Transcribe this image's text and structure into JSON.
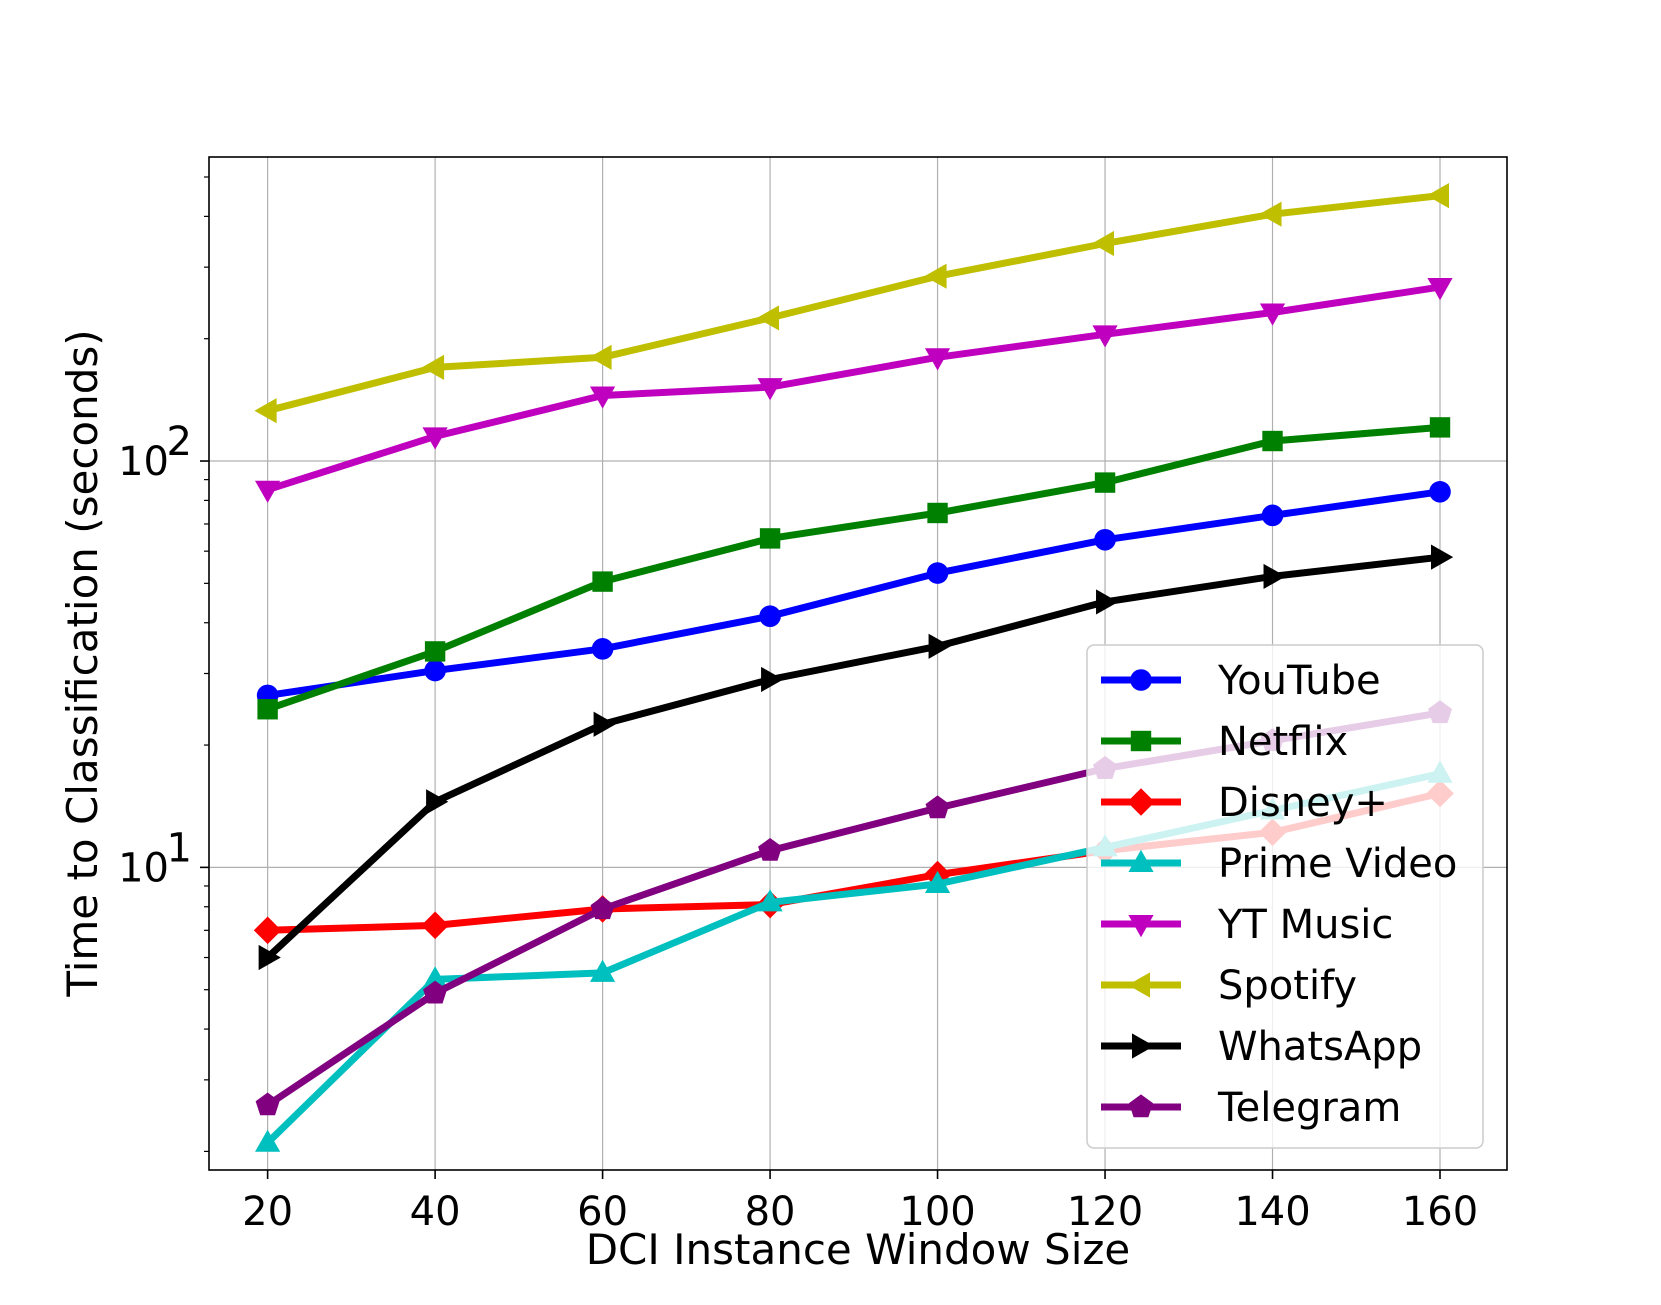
{
  "chart_data": {
    "type": "line",
    "title": "",
    "xlabel": "DCI Instance Window Size",
    "ylabel": "Time to Classification (seconds)",
    "yscale": "log",
    "x": [
      20,
      40,
      60,
      80,
      100,
      120,
      140,
      160
    ],
    "xticks": [
      20,
      40,
      60,
      80,
      100,
      120,
      140,
      160
    ],
    "xlim": [
      13,
      168
    ],
    "ylim": [
      1.8,
      560
    ],
    "yticks": [
      {
        "value": 10,
        "base": "10",
        "exp": "1"
      },
      {
        "value": 100,
        "base": "10",
        "exp": "2"
      }
    ],
    "grid": true,
    "legend_position": "lower-right",
    "series": [
      {
        "name": "YouTube",
        "color": "#0000ff",
        "marker": "circle",
        "values": [
          26.5,
          30.5,
          34.5,
          41.5,
          53,
          64,
          73.5,
          84
        ]
      },
      {
        "name": "Netflix",
        "color": "#008000",
        "marker": "square",
        "values": [
          24.5,
          34,
          50.5,
          64.5,
          74.5,
          88.5,
          112,
          121
        ]
      },
      {
        "name": "Disney+",
        "color": "#ff0000",
        "marker": "diamond",
        "values": [
          7.0,
          7.2,
          7.9,
          8.1,
          9.6,
          11.0,
          12.2,
          15.2
        ]
      },
      {
        "name": "Prime Video",
        "color": "#00bfbf",
        "marker": "triangle-up",
        "values": [
          2.1,
          5.3,
          5.5,
          8.2,
          9.1,
          11.2,
          13.8,
          17.0
        ]
      },
      {
        "name": "YT Music",
        "color": "#bf00bf",
        "marker": "triangle-down",
        "values": [
          85,
          115,
          145,
          152,
          180,
          205,
          232,
          268
        ]
      },
      {
        "name": "Spotify",
        "color": "#bfbf00",
        "marker": "triangle-left",
        "values": [
          133,
          170,
          180,
          225,
          285,
          343,
          405,
          450
        ]
      },
      {
        "name": "WhatsApp",
        "color": "#000000",
        "marker": "triangle-right",
        "values": [
          6.0,
          14.5,
          22.5,
          29.0,
          35.0,
          45.0,
          52.0,
          58.0
        ]
      },
      {
        "name": "Telegram",
        "color": "#800080",
        "marker": "pentagon",
        "values": [
          2.6,
          4.9,
          7.9,
          11.0,
          14.0,
          17.5,
          20.5,
          24.0
        ]
      }
    ]
  }
}
